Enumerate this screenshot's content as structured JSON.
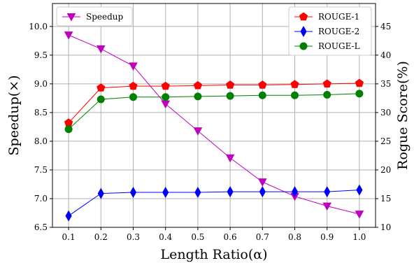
{
  "chart_data": {
    "type": "line",
    "xlabel": "Length Ratio(α)",
    "ylabel_left": "Speedup(×)",
    "ylabel_right": "Rogue Score(%)",
    "x": [
      0.1,
      0.2,
      0.3,
      0.4,
      0.5,
      0.6,
      0.7,
      0.8,
      0.9,
      1.0
    ],
    "xlim": [
      0.05,
      1.05
    ],
    "ylim_left": [
      6.5,
      10.4
    ],
    "ylim_right": [
      10,
      49
    ],
    "x_ticks": [
      "0.1",
      "0.2",
      "0.3",
      "0.4",
      "0.5",
      "0.6",
      "0.7",
      "0.8",
      "0.9",
      "1.0"
    ],
    "y_ticks_left": [
      "6.5",
      "7.0",
      "7.5",
      "8.0",
      "8.5",
      "9.0",
      "9.5",
      "10.0"
    ],
    "y_ticks_right": [
      "10",
      "15",
      "20",
      "25",
      "30",
      "35",
      "40",
      "45"
    ],
    "grid": true,
    "series": [
      {
        "name": "Speedup",
        "axis": "left",
        "color": "#bf00bf",
        "marker": "triangle-down",
        "values": [
          9.85,
          9.61,
          9.31,
          8.65,
          8.18,
          7.71,
          7.29,
          7.04,
          6.87,
          6.73
        ]
      },
      {
        "name": "ROUGE-1",
        "axis": "right",
        "color": "#ff0000",
        "marker": "pentagon",
        "values": [
          28.2,
          34.3,
          34.6,
          34.6,
          34.7,
          34.8,
          34.8,
          34.9,
          35.0,
          35.1
        ]
      },
      {
        "name": "ROUGE-2",
        "axis": "right",
        "color": "#0000ff",
        "marker": "diamond",
        "values": [
          12.0,
          15.9,
          16.1,
          16.1,
          16.1,
          16.2,
          16.2,
          16.2,
          16.2,
          16.5
        ]
      },
      {
        "name": "ROUGE-L",
        "axis": "right",
        "color": "#008000",
        "marker": "circle",
        "values": [
          27.1,
          32.3,
          32.7,
          32.7,
          32.8,
          32.9,
          33.0,
          33.0,
          33.1,
          33.3
        ]
      }
    ],
    "legend_left": {
      "placement": "upper-left",
      "series": [
        "Speedup"
      ]
    },
    "legend_right": {
      "placement": "upper-right",
      "series": [
        "ROUGE-1",
        "ROUGE-2",
        "ROUGE-L"
      ]
    }
  }
}
